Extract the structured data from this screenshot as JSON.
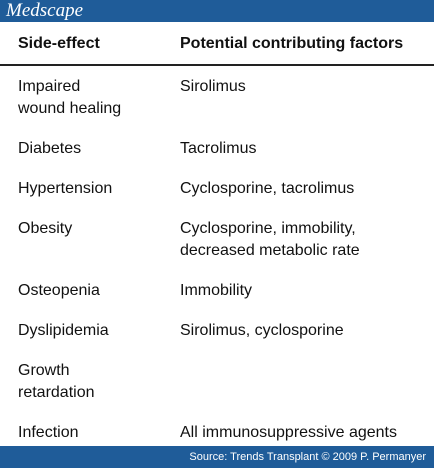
{
  "header": {
    "logo": "Medscape"
  },
  "table": {
    "columns": [
      "Side-effect",
      "Potential contributing factors"
    ],
    "rows": [
      [
        [
          "Impaired",
          "wound healing"
        ],
        [
          "Sirolimus"
        ]
      ],
      [
        [
          "Diabetes"
        ],
        [
          "Tacrolimus"
        ]
      ],
      [
        [
          "Hypertension"
        ],
        [
          "Cyclosporine, tacrolimus"
        ]
      ],
      [
        [
          "Obesity"
        ],
        [
          "Cyclosporine, immobility,",
          "decreased metabolic rate"
        ]
      ],
      [
        [
          "Osteopenia"
        ],
        [
          "Immobility"
        ]
      ],
      [
        [
          "Dyslipidemia"
        ],
        [
          "Sirolimus, cyclosporine"
        ]
      ],
      [
        [
          "Growth",
          "retardation"
        ],
        []
      ],
      [
        [
          "Infection"
        ],
        [
          "All immunosuppressive agents"
        ]
      ]
    ]
  },
  "footer": {
    "source": "Source: Trends Transplant © 2009 P. Permanyer"
  }
}
